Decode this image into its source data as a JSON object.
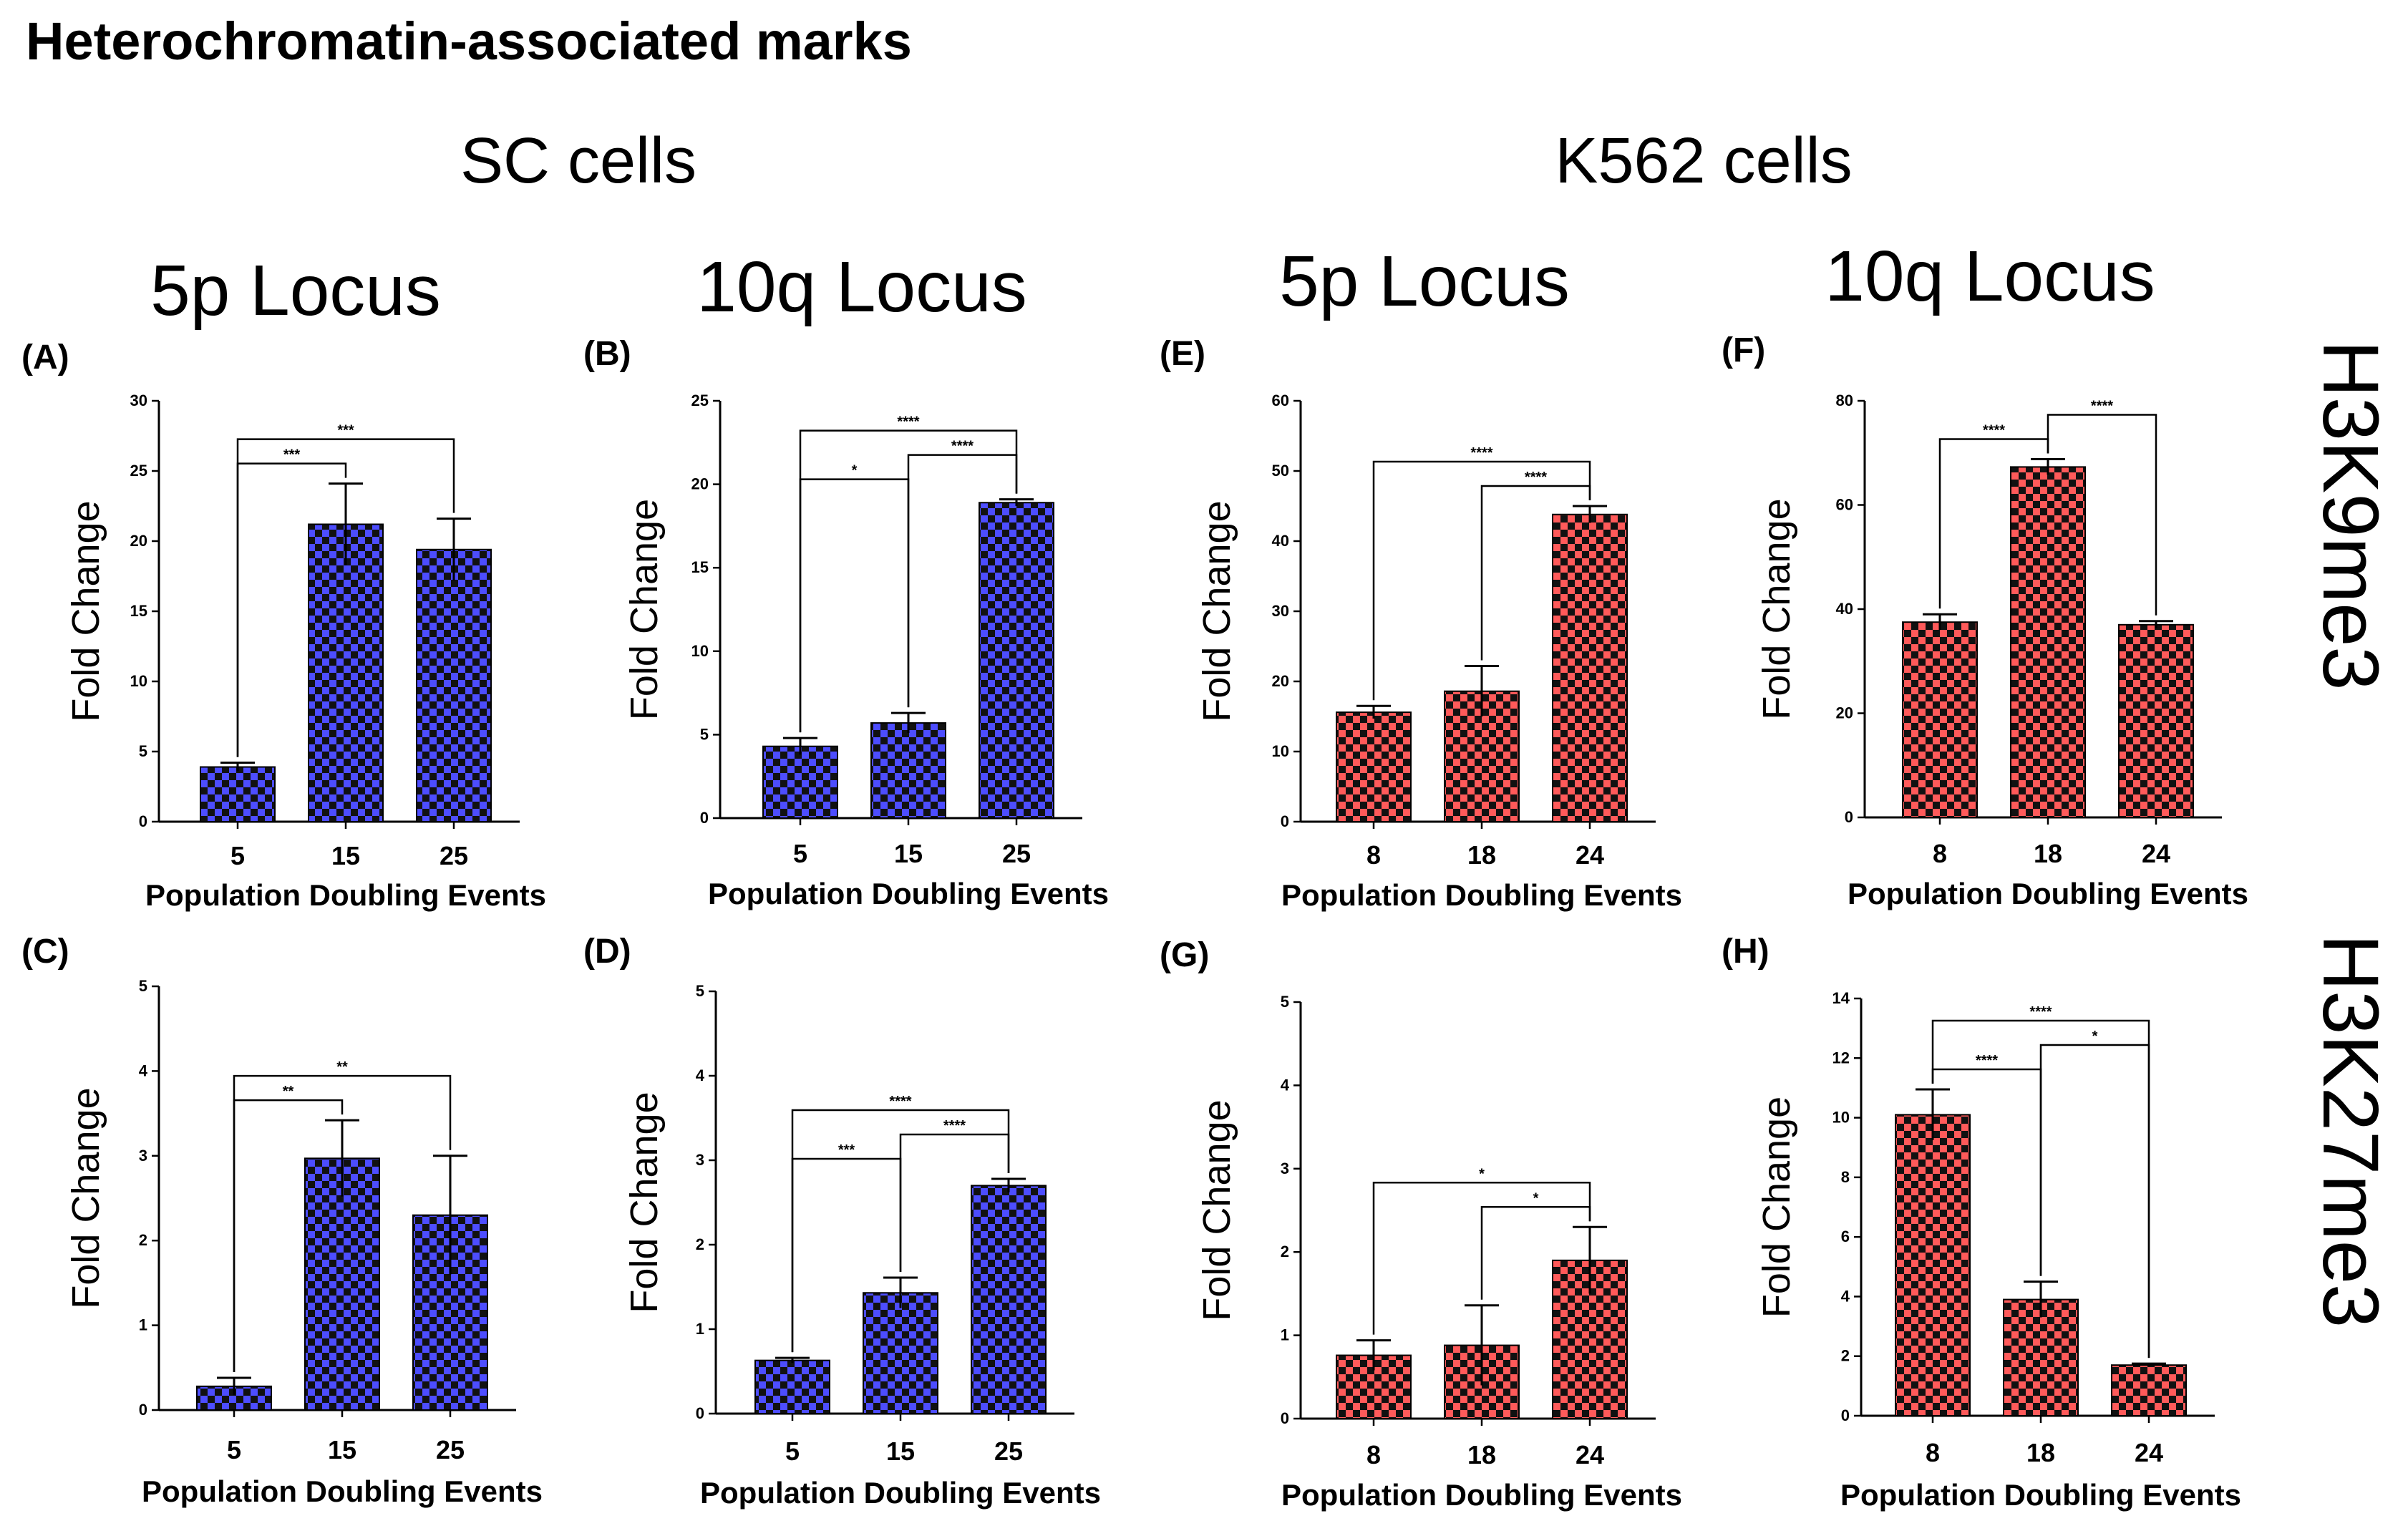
{
  "figure": {
    "title": "Heterochromatin-associated marks",
    "groups": [
      "SC cells",
      "K562 cells"
    ],
    "loci": [
      "5p Locus",
      "10q Locus",
      "5p Locus",
      "10q Locus"
    ],
    "row_labels": [
      "H3K9me3",
      "H3K27me3"
    ]
  },
  "colors": {
    "sc_bar": "#4d4dff",
    "k562_bar": "#ff5a5a",
    "pattern_dark": "#111111"
  },
  "chart_data": [
    {
      "panel": "(A)",
      "type": "bar",
      "title": "5p Locus",
      "cell": "SC cells",
      "mark": "H3K9me3",
      "categories": [
        "5",
        "15",
        "25"
      ],
      "values": [
        3.9,
        21.2,
        19.4
      ],
      "errors": [
        0.3,
        2.9,
        2.2
      ],
      "xlabel": "Population Doubling Events",
      "ylabel": "Fold Change",
      "ylim": [
        0,
        30
      ],
      "yticks": [
        "0",
        "5",
        "10",
        "15",
        "20",
        "25",
        "30"
      ],
      "significance": [
        {
          "from": 0,
          "to": 1,
          "label": "***"
        },
        {
          "from": 0,
          "to": 2,
          "label": "***"
        }
      ]
    },
    {
      "panel": "(B)",
      "type": "bar",
      "title": "10q Locus",
      "cell": "SC cells",
      "mark": "H3K9me3",
      "categories": [
        "5",
        "15",
        "25"
      ],
      "values": [
        4.3,
        5.7,
        18.9
      ],
      "errors": [
        0.5,
        0.6,
        0.2
      ],
      "xlabel": "Population Doubling Events",
      "ylabel": "Fold Change",
      "ylim": [
        0,
        25
      ],
      "yticks": [
        "0",
        "5",
        "10",
        "15",
        "20",
        "25"
      ],
      "significance": [
        {
          "from": 0,
          "to": 1,
          "label": "*"
        },
        {
          "from": 1,
          "to": 2,
          "label": "****"
        },
        {
          "from": 0,
          "to": 2,
          "label": "****"
        }
      ]
    },
    {
      "panel": "(E)",
      "type": "bar",
      "title": "5p Locus",
      "cell": "K562 cells",
      "mark": "H3K9me3",
      "categories": [
        "8",
        "18",
        "24"
      ],
      "values": [
        15.6,
        18.6,
        43.8
      ],
      "errors": [
        0.9,
        3.6,
        1.2
      ],
      "xlabel": "Population Doubling Events",
      "ylabel": "Fold Change",
      "ylim": [
        0,
        60
      ],
      "yticks": [
        "0",
        "10",
        "20",
        "30",
        "40",
        "50",
        "60"
      ],
      "significance": [
        {
          "from": 1,
          "to": 2,
          "label": "****"
        },
        {
          "from": 0,
          "to": 2,
          "label": "****"
        }
      ]
    },
    {
      "panel": "(F)",
      "type": "bar",
      "title": "10q Locus",
      "cell": "K562 cells",
      "mark": "H3K9me3",
      "categories": [
        "8",
        "18",
        "24"
      ],
      "values": [
        37.5,
        67.3,
        37.0
      ],
      "errors": [
        1.5,
        1.5,
        0.7
      ],
      "xlabel": "Population Doubling Events",
      "ylabel": "Fold Change",
      "ylim": [
        0,
        80
      ],
      "yticks": [
        "0",
        "20",
        "40",
        "60",
        "80"
      ],
      "significance": [
        {
          "from": 0,
          "to": 1,
          "label": "****"
        },
        {
          "from": 1,
          "to": 2,
          "label": "****"
        }
      ]
    },
    {
      "panel": "(C)",
      "type": "bar",
      "title": "",
      "cell": "SC cells",
      "mark": "H3K27me3",
      "categories": [
        "5",
        "15",
        "25"
      ],
      "values": [
        0.28,
        2.97,
        2.3
      ],
      "errors": [
        0.1,
        0.45,
        0.7
      ],
      "xlabel": "Population Doubling Events",
      "ylabel": "Fold Change",
      "ylim": [
        0,
        5
      ],
      "yticks": [
        "0",
        "1",
        "2",
        "3",
        "4",
        "5"
      ],
      "significance": [
        {
          "from": 0,
          "to": 1,
          "label": "**"
        },
        {
          "from": 0,
          "to": 2,
          "label": "**"
        }
      ]
    },
    {
      "panel": "(D)",
      "type": "bar",
      "title": "",
      "cell": "SC cells",
      "mark": "H3K27me3",
      "categories": [
        "5",
        "15",
        "25"
      ],
      "values": [
        0.63,
        1.43,
        2.7
      ],
      "errors": [
        0.03,
        0.18,
        0.08
      ],
      "xlabel": "Population Doubling Events",
      "ylabel": "Fold Change",
      "ylim": [
        0,
        5
      ],
      "yticks": [
        "0",
        "1",
        "2",
        "3",
        "4",
        "5"
      ],
      "significance": [
        {
          "from": 0,
          "to": 1,
          "label": "***"
        },
        {
          "from": 1,
          "to": 2,
          "label": "****"
        },
        {
          "from": 0,
          "to": 2,
          "label": "****"
        }
      ]
    },
    {
      "panel": "(G)",
      "type": "bar",
      "title": "",
      "cell": "K562 cells",
      "mark": "H3K27me3",
      "categories": [
        "8",
        "18",
        "24"
      ],
      "values": [
        0.76,
        0.88,
        1.9
      ],
      "errors": [
        0.18,
        0.48,
        0.4
      ],
      "xlabel": "Population Doubling Events",
      "ylabel": "Fold Change",
      "ylim": [
        0,
        5
      ],
      "yticks": [
        "0",
        "1",
        "2",
        "3",
        "4",
        "5"
      ],
      "significance": [
        {
          "from": 1,
          "to": 2,
          "label": "*"
        },
        {
          "from": 0,
          "to": 2,
          "label": "*"
        }
      ]
    },
    {
      "panel": "(H)",
      "type": "bar",
      "title": "",
      "cell": "K562 cells",
      "mark": "H3K27me3",
      "categories": [
        "8",
        "18",
        "24"
      ],
      "values": [
        10.1,
        3.9,
        1.7
      ],
      "errors": [
        0.85,
        0.6,
        0.05
      ],
      "xlabel": "Population Doubling Events",
      "ylabel": "Fold Change",
      "ylim": [
        0,
        14
      ],
      "yticks": [
        "0",
        "2",
        "4",
        "6",
        "8",
        "10",
        "12",
        "14"
      ],
      "significance": [
        {
          "from": 0,
          "to": 1,
          "label": "****"
        },
        {
          "from": 0,
          "to": 2,
          "label": "****"
        },
        {
          "from": 1,
          "to": 2,
          "label": "*"
        }
      ]
    }
  ]
}
